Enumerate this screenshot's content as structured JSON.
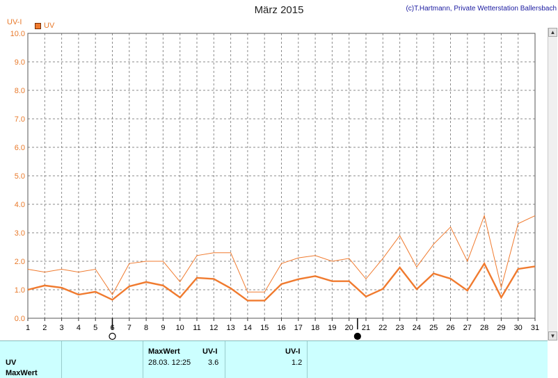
{
  "chart_data": {
    "type": "line",
    "title": "März 2015",
    "copyright": "(c)T.Hartmann, Private Wetterstation Ballersbach",
    "ylabel": "UV-I",
    "xlabel": "",
    "ylim": [
      0,
      10
    ],
    "yticks": [
      "0.0",
      "1.0",
      "2.0",
      "3.0",
      "4.0",
      "5.0",
      "6.0",
      "7.0",
      "8.0",
      "9.0",
      "10.0"
    ],
    "x": [
      1,
      2,
      3,
      4,
      5,
      6,
      7,
      8,
      9,
      10,
      11,
      12,
      13,
      14,
      15,
      16,
      17,
      18,
      19,
      20,
      21,
      22,
      23,
      24,
      25,
      26,
      27,
      28,
      29,
      30,
      31
    ],
    "xticks": [
      "1",
      "2",
      "3",
      "4",
      "5",
      "6",
      "7",
      "8",
      "9",
      "10",
      "11",
      "12",
      "13",
      "14",
      "15",
      "16",
      "17",
      "18",
      "19",
      "20",
      "21",
      "22",
      "23",
      "24",
      "25",
      "26",
      "27",
      "28",
      "29",
      "30",
      "31"
    ],
    "grid": true,
    "legend": "top-left",
    "series": [
      {
        "name": "UV",
        "role": "mean",
        "color": "#f07a2e",
        "values": [
          1.0,
          1.15,
          1.07,
          0.83,
          0.93,
          0.65,
          1.12,
          1.27,
          1.15,
          0.73,
          1.42,
          1.38,
          1.05,
          0.62,
          0.62,
          1.2,
          1.37,
          1.48,
          1.3,
          1.3,
          0.76,
          1.03,
          1.78,
          1.02,
          1.57,
          1.39,
          0.97,
          1.92,
          0.73,
          1.73,
          1.82
        ]
      },
      {
        "name": "",
        "role": "max",
        "color": "#f07a2e",
        "values": [
          1.72,
          1.62,
          1.72,
          1.62,
          1.72,
          0.83,
          1.92,
          2.0,
          2.0,
          1.28,
          2.2,
          2.3,
          2.3,
          0.92,
          0.92,
          1.92,
          2.12,
          2.2,
          2.0,
          2.1,
          1.38,
          2.1,
          2.9,
          1.8,
          2.6,
          3.2,
          2.0,
          3.6,
          1.08,
          3.32,
          3.6
        ]
      }
    ],
    "moon_phases": [
      {
        "day": 6,
        "phase": "full-moon-icon"
      },
      {
        "day": 20.5,
        "phase": "new-moon-icon"
      }
    ]
  },
  "info_panel": {
    "row_labels": [
      "UV",
      "MaxWert"
    ],
    "col_maxwert": "MaxWert",
    "col_uvi_1": "UV-I",
    "col_uvi_2": "UV-I",
    "max_datetime": "28.03.  12:25",
    "max_value": "3.6",
    "avg_value": "1.2"
  },
  "scrollbar": {
    "up": "▲",
    "down": "▼"
  }
}
